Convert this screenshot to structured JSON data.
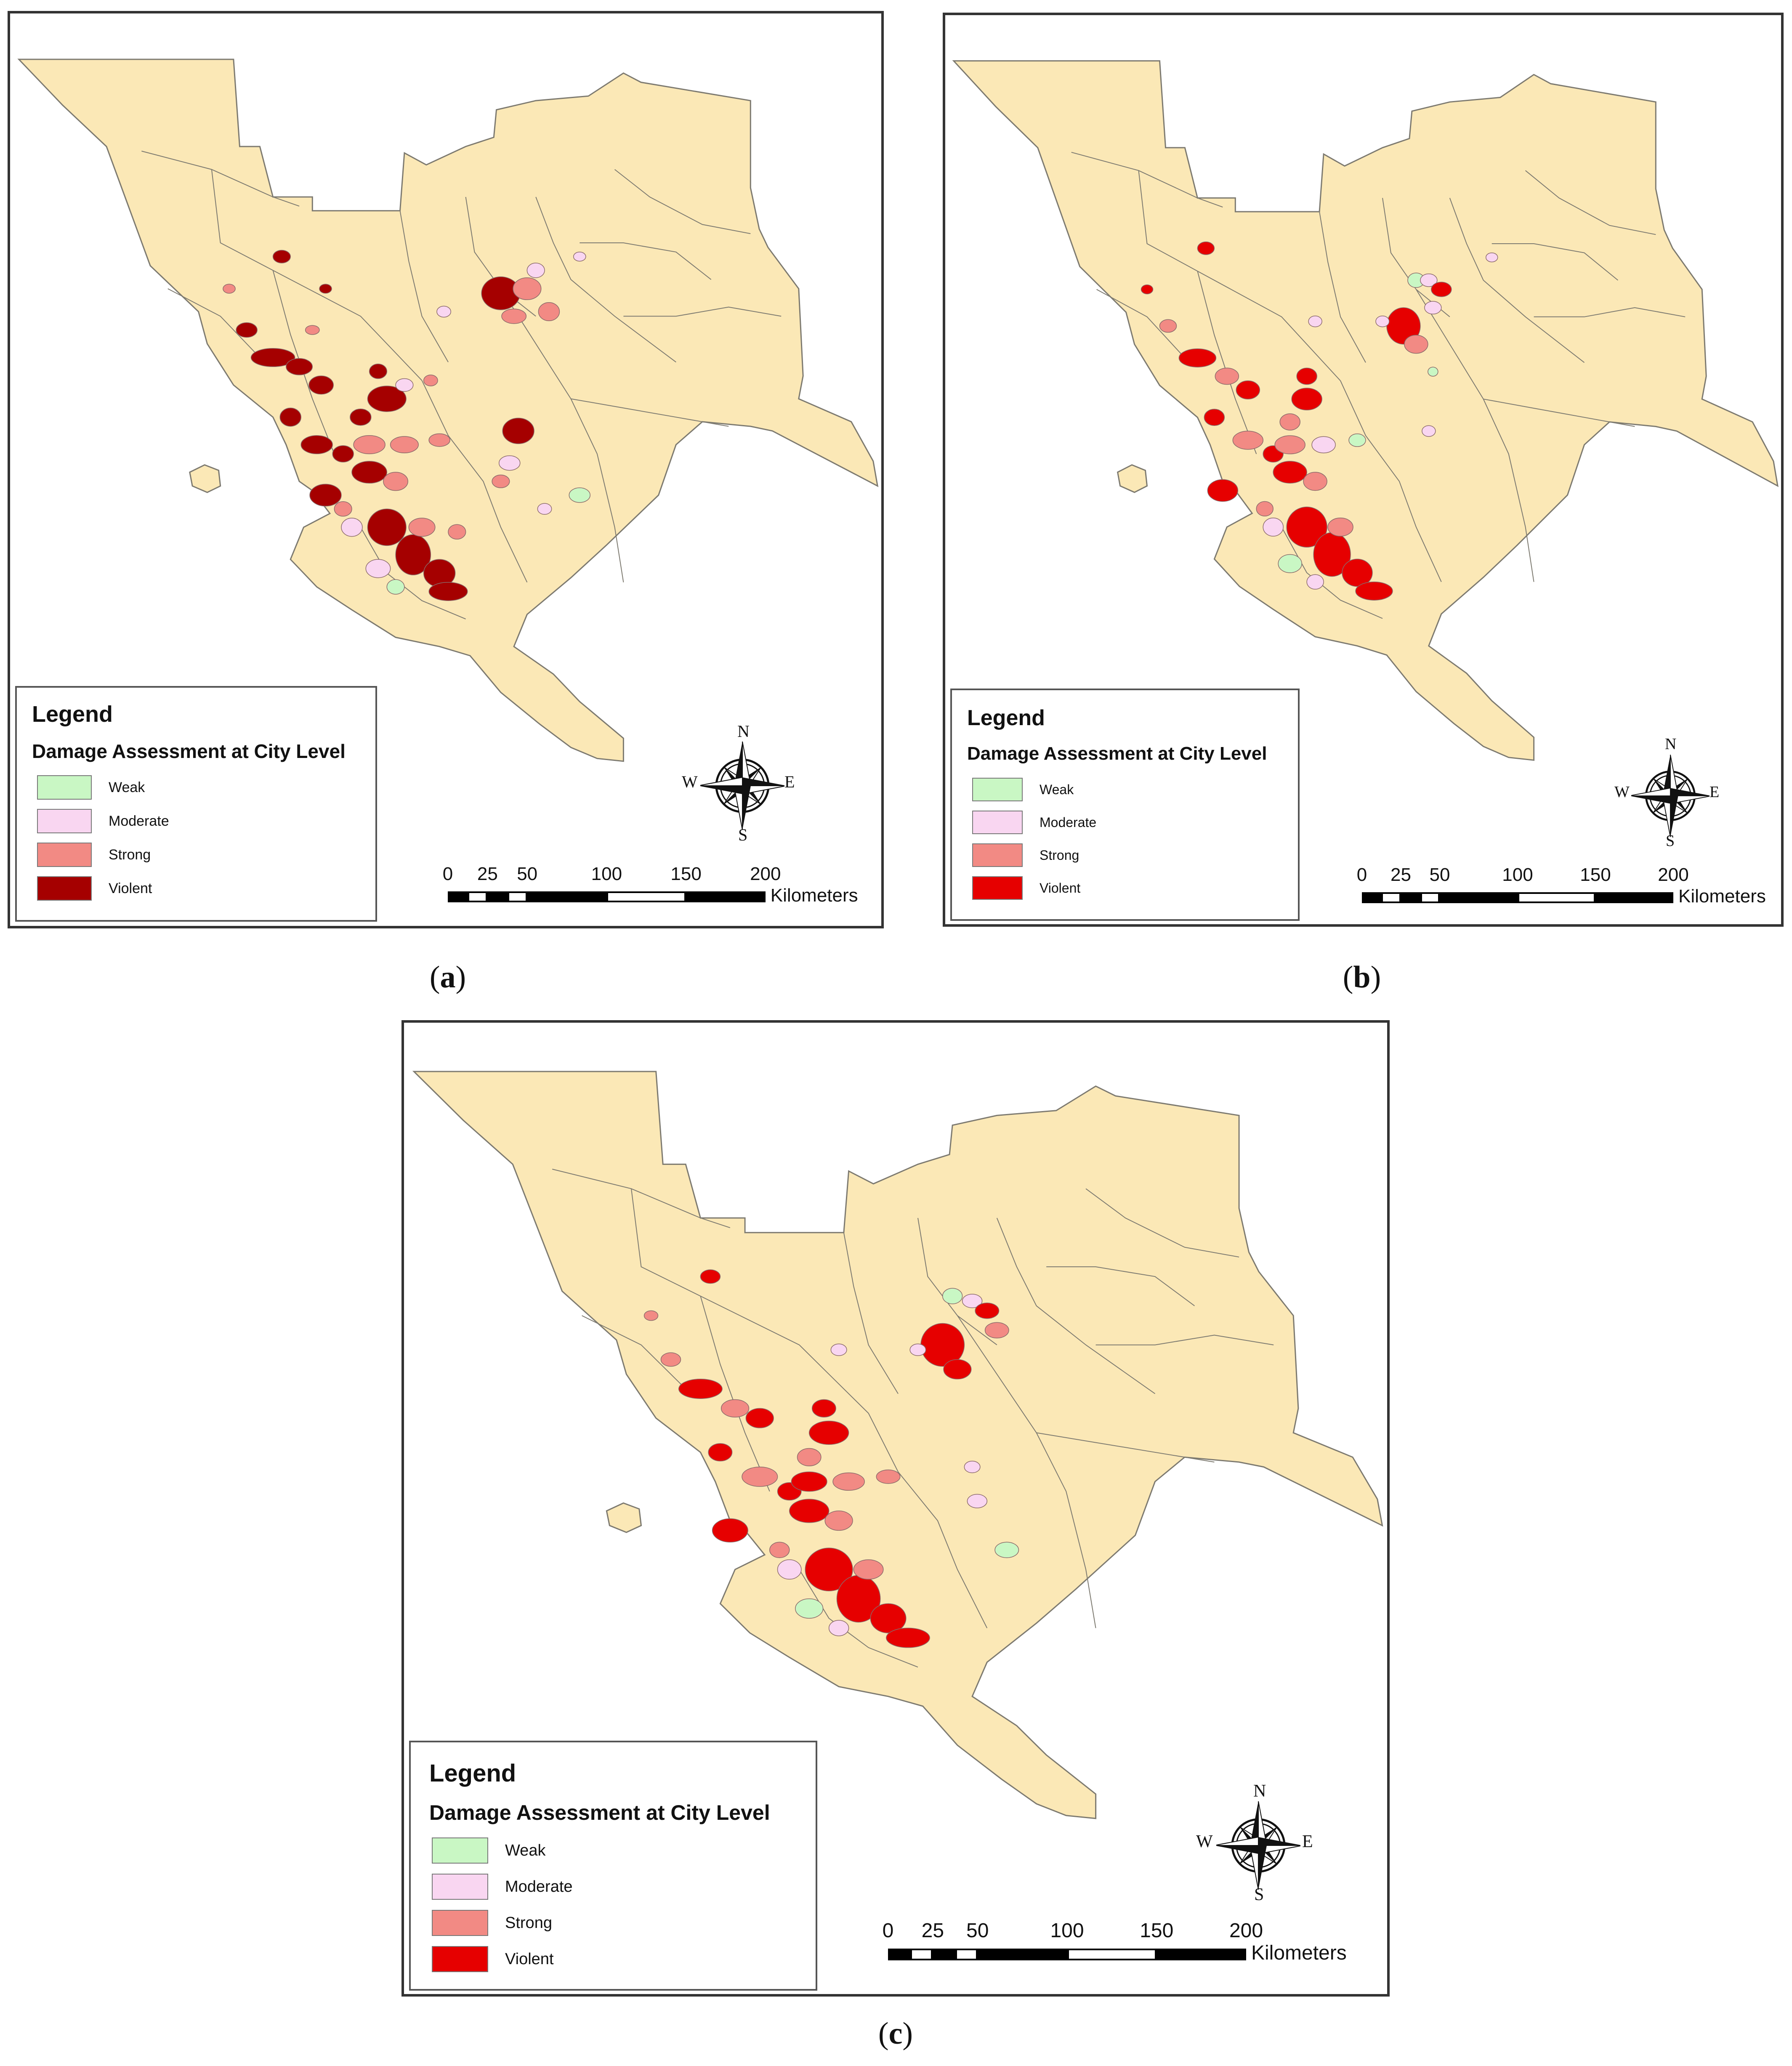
{
  "colors": {
    "land": "#fbe8b6",
    "boundary": "#7d7a70",
    "weak": "#c9f7c4",
    "moderate": "#f9d6f1",
    "strong": "#f28a84",
    "violent_a": "#a50000",
    "violent_bc": "#e60000"
  },
  "panels": [
    {
      "id": "a",
      "caption_paren_open": "(",
      "caption_letter": "a",
      "caption_paren_close": ")",
      "legend": {
        "title": "Legend",
        "subtitle": "Damage Assessment at City Level",
        "items": [
          {
            "label": "Weak",
            "color": "#c9f7c4"
          },
          {
            "label": "Moderate",
            "color": "#f9d6f1"
          },
          {
            "label": "Strong",
            "color": "#f28a84"
          },
          {
            "label": "Violent",
            "color": "#a50000"
          }
        ]
      },
      "compass": {
        "n": "N",
        "s": "S",
        "e": "E",
        "w": "W"
      },
      "scale": {
        "ticks": [
          "0",
          "25",
          "50",
          "100",
          "150",
          "200"
        ],
        "unit": "Kilometers"
      }
    },
    {
      "id": "b",
      "caption_paren_open": "(",
      "caption_letter": "b",
      "caption_paren_close": ")",
      "legend": {
        "title": "Legend",
        "subtitle": "Damage Assessment at City Level",
        "items": [
          {
            "label": "Weak",
            "color": "#c9f7c4"
          },
          {
            "label": "Moderate",
            "color": "#f9d6f1"
          },
          {
            "label": "Strong",
            "color": "#f28a84"
          },
          {
            "label": "Violent",
            "color": "#e60000"
          }
        ]
      },
      "compass": {
        "n": "N",
        "s": "S",
        "e": "E",
        "w": "W"
      },
      "scale": {
        "ticks": [
          "0",
          "25",
          "50",
          "100",
          "150",
          "200"
        ],
        "unit": "Kilometers"
      }
    },
    {
      "id": "c",
      "caption_paren_open": "(",
      "caption_letter": "c",
      "caption_paren_close": ")",
      "legend": {
        "title": "Legend",
        "subtitle": "Damage Assessment at City Level",
        "items": [
          {
            "label": "Weak",
            "color": "#c9f7c4"
          },
          {
            "label": "Moderate",
            "color": "#f9d6f1"
          },
          {
            "label": "Strong",
            "color": "#f28a84"
          },
          {
            "label": "Violent",
            "color": "#e60000"
          }
        ]
      },
      "compass": {
        "n": "N",
        "s": "S",
        "e": "E",
        "w": "W"
      },
      "scale": {
        "ticks": [
          "0",
          "25",
          "50",
          "100",
          "150",
          "200"
        ],
        "unit": "Kilometers"
      }
    }
  ]
}
